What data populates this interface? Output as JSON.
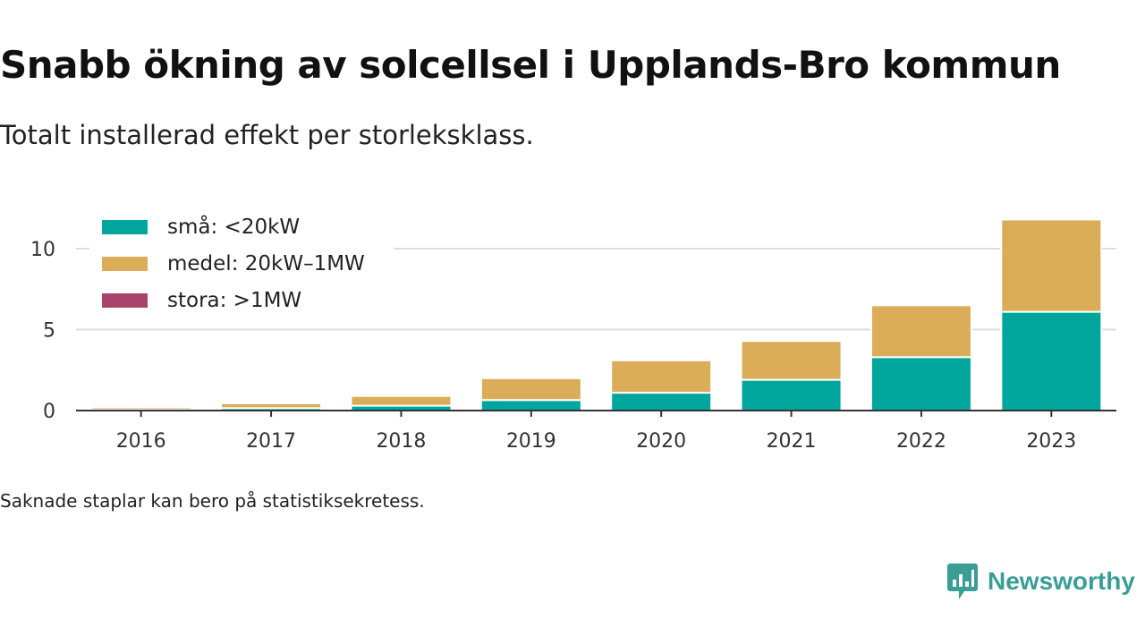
{
  "header": {
    "title": "Snabb ökning av solcellsel i Upplands-Bro kommun",
    "subtitle": "Totalt installerad effekt per storleksklass."
  },
  "footer": {
    "note": "Saknade staplar kan bero på statistiksekretess.",
    "brand": "Newsworthy",
    "brand_icon": "bar-chart-speech-bubble-icon"
  },
  "colors": {
    "sma": "#00a69c",
    "medel": "#dbad59",
    "stora": "#a8426b",
    "grid": "#dddddd",
    "axis": "#333333",
    "brand": "#3a9e96"
  },
  "chart_data": {
    "type": "bar",
    "stacked": true,
    "categories": [
      "2016",
      "2017",
      "2018",
      "2019",
      "2020",
      "2021",
      "2022",
      "2023"
    ],
    "series": [
      {
        "name": "små: <20kW",
        "color": "#00a69c",
        "values": [
          0.05,
          0.15,
          0.3,
          0.65,
          1.1,
          1.9,
          3.3,
          6.1
        ]
      },
      {
        "name": "medel: 20kW–1MW",
        "color": "#dbad59",
        "values": [
          0.15,
          0.3,
          0.6,
          1.35,
          2.0,
          2.4,
          3.2,
          5.7
        ]
      },
      {
        "name": "stora: >1MW",
        "color": "#a8426b",
        "values": [
          0,
          0,
          0,
          0,
          0,
          0,
          0,
          0
        ]
      }
    ],
    "ylim": [
      0,
      12.5
    ],
    "yticks": [
      "0",
      "5",
      "10"
    ],
    "grid": true,
    "legend_position": "top-left",
    "xlabel": "",
    "ylabel": ""
  }
}
